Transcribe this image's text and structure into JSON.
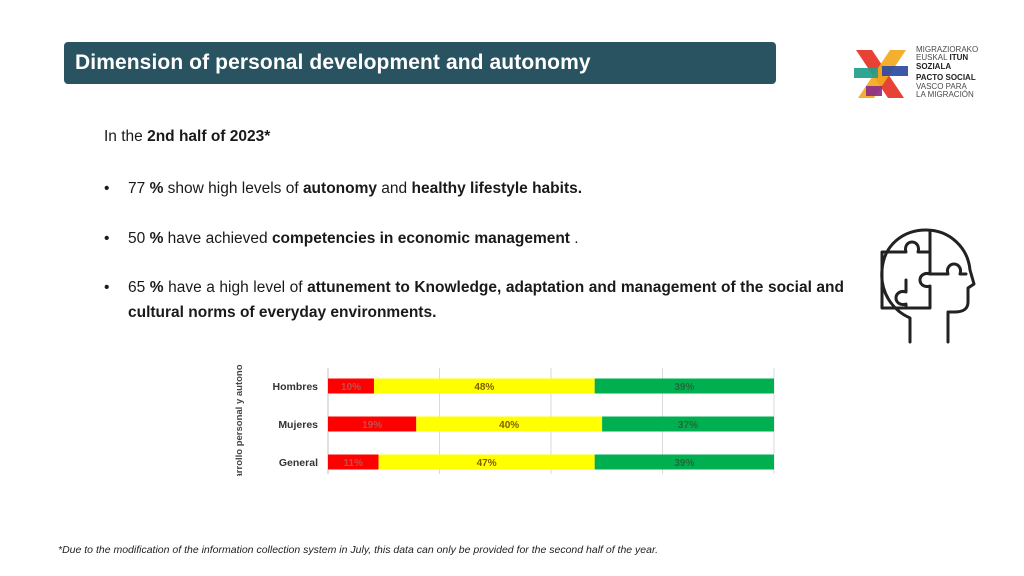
{
  "header": {
    "title": "Dimension of personal development and autonomy"
  },
  "logo": {
    "lines": [
      "MIGRAZIORAKO",
      "EUSKAL ",
      "ITUN",
      "SOZIALA",
      "PACTO SOCIAL",
      "VASCO PARA",
      "LA MIGRACIÓN"
    ],
    "colors": [
      "#e63225",
      "#f4a81d",
      "#1f9e89",
      "#2b4aa0",
      "#8a2e86",
      "#f06aa0"
    ]
  },
  "content": {
    "intro_prefix": "In the ",
    "intro_bold": "2nd half of 2023*",
    "bullets": [
      {
        "symbol": "•",
        "parts": [
          {
            "t": "77 ",
            "b": false
          },
          {
            "t": "%",
            "b": true
          },
          {
            "t": " show high levels of ",
            "b": false
          },
          {
            "t": "autonomy",
            "b": true
          },
          {
            "t": " and ",
            "b": false
          },
          {
            "t": "healthy lifestyle habits.",
            "b": true
          }
        ]
      },
      {
        "symbol": "•",
        "parts": [
          {
            "t": "50 ",
            "b": false
          },
          {
            "t": "%",
            "b": true
          },
          {
            "t": " have achieved ",
            "b": false
          },
          {
            "t": "competencies in economic management",
            "b": true
          },
          {
            "t": " .",
            "b": false
          }
        ]
      },
      {
        "symbol": "•",
        "parts": [
          {
            "t": "65 ",
            "b": false
          },
          {
            "t": "%",
            "b": true
          },
          {
            "t": " have a high level of ",
            "b": false
          },
          {
            "t": "attunement to Knowledge, adaptation and management of the social and cultural norms of everyday environments.",
            "b": true
          }
        ]
      }
    ]
  },
  "chart_data": {
    "type": "bar",
    "stacked": true,
    "orientation": "horizontal",
    "ylabel": "Desarrollo personal y autonomía",
    "categories": [
      "Hombres",
      "Mujeres",
      "General"
    ],
    "series": [
      {
        "values": [
          10,
          19,
          11
        ],
        "labels": [
          "10%",
          "19%",
          "11%"
        ],
        "color": "#ff0000"
      },
      {
        "values": [
          48,
          40,
          47
        ],
        "labels": [
          "48%",
          "40%",
          "47%"
        ],
        "color": "#ffff00"
      },
      {
        "values": [
          39,
          37,
          39
        ],
        "labels": [
          "39%",
          "37%",
          "39%"
        ],
        "color": "#00b050"
      }
    ],
    "xlim": [
      0,
      100
    ],
    "grid": true
  },
  "icons": {
    "puzzle": "puzzle-head-icon"
  },
  "footnote": "*Due to the modification of the information collection system in July, this data can only be provided for the second half of the year."
}
